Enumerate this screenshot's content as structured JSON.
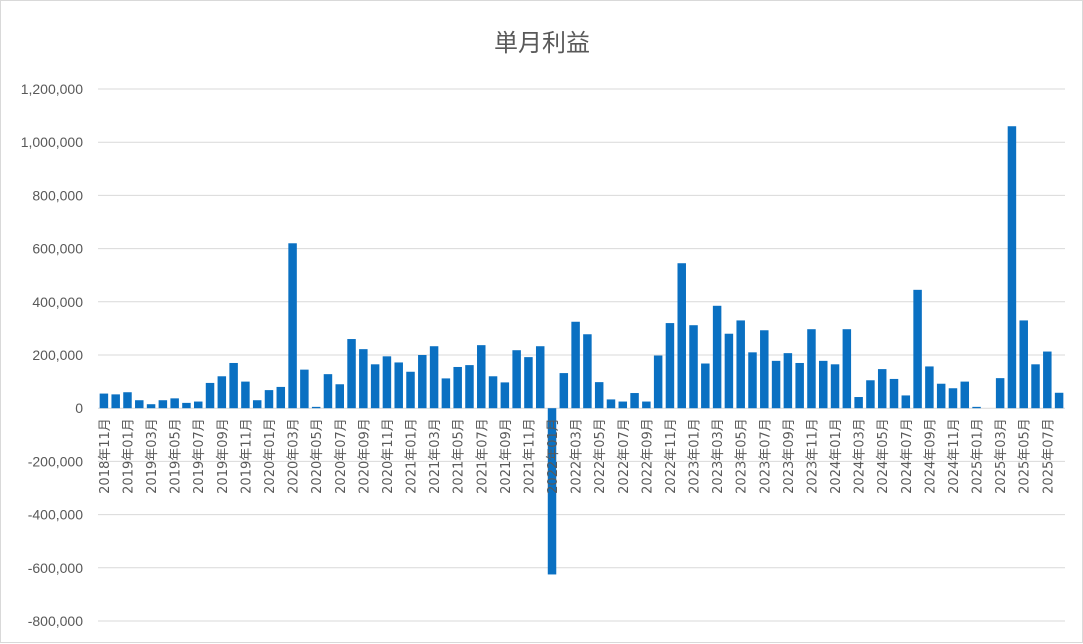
{
  "chart_data": {
    "type": "bar",
    "title": "単月利益",
    "xlabel": "",
    "ylabel": "",
    "ylim": [
      -800000,
      1200000
    ],
    "ytick_step": 200000,
    "y_tick_labels": [
      "-800,000",
      "-600,000",
      "-400,000",
      "-200,000",
      "0",
      "200,000",
      "400,000",
      "600,000",
      "800,000",
      "1,000,000",
      "1,200,000"
    ],
    "grid": true,
    "bar_color": "#0a70c2",
    "gridline_color": "#d9d9d9",
    "label_every": 2,
    "categories": [
      "2018年11月",
      "2018年12月",
      "2019年01月",
      "2019年02月",
      "2019年03月",
      "2019年04月",
      "2019年05月",
      "2019年06月",
      "2019年07月",
      "2019年08月",
      "2019年09月",
      "2019年10月",
      "2019年11月",
      "2019年12月",
      "2020年01月",
      "2020年02月",
      "2020年03月",
      "2020年04月",
      "2020年05月",
      "2020年06月",
      "2020年07月",
      "2020年08月",
      "2020年09月",
      "2020年10月",
      "2020年11月",
      "2020年12月",
      "2021年01月",
      "2021年02月",
      "2021年03月",
      "2021年04月",
      "2021年05月",
      "2021年06月",
      "2021年07月",
      "2021年08月",
      "2021年09月",
      "2021年10月",
      "2021年11月",
      "2021年12月",
      "2022年01月",
      "2022年02月",
      "2022年03月",
      "2022年04月",
      "2022年05月",
      "2022年06月",
      "2022年07月",
      "2022年08月",
      "2022年09月",
      "2022年10月",
      "2022年11月",
      "2022年12月",
      "2023年01月",
      "2023年02月",
      "2023年03月",
      "2023年04月",
      "2023年05月",
      "2023年06月",
      "2023年07月",
      "2023年08月",
      "2023年09月",
      "2023年10月",
      "2023年11月",
      "2023年12月",
      "2024年01月",
      "2024年02月",
      "2024年03月",
      "2024年04月",
      "2024年05月",
      "2024年06月",
      "2024年07月",
      "2024年08月",
      "2024年09月",
      "2024年10月",
      "2024年11月",
      "2024年12月",
      "2025年01月",
      "2025年02月",
      "2025年03月",
      "2025年04月",
      "2025年05月",
      "2025年06月",
      "2025年07月",
      "2025年08月"
    ],
    "values": [
      55000,
      52000,
      60000,
      30000,
      15000,
      30000,
      37000,
      20000,
      25000,
      95000,
      120000,
      170000,
      100000,
      30000,
      68000,
      80000,
      620000,
      145000,
      5000,
      128000,
      90000,
      260000,
      222000,
      165000,
      195000,
      172000,
      137000,
      200000,
      233000,
      112000,
      155000,
      162000,
      237000,
      120000,
      97000,
      218000,
      192000,
      233000,
      -625000,
      132000,
      325000,
      278000,
      98000,
      33000,
      25000,
      57000,
      25000,
      198000,
      320000,
      545000,
      312000,
      168000,
      385000,
      280000,
      330000,
      210000,
      293000,
      178000,
      207000,
      170000,
      297000,
      178000,
      165000,
      297000,
      42000,
      105000,
      147000,
      110000,
      48000,
      445000,
      157000,
      92000,
      75000,
      100000,
      5000,
      0,
      113000,
      1060000,
      330000,
      165000,
      213000,
      58000
    ]
  }
}
